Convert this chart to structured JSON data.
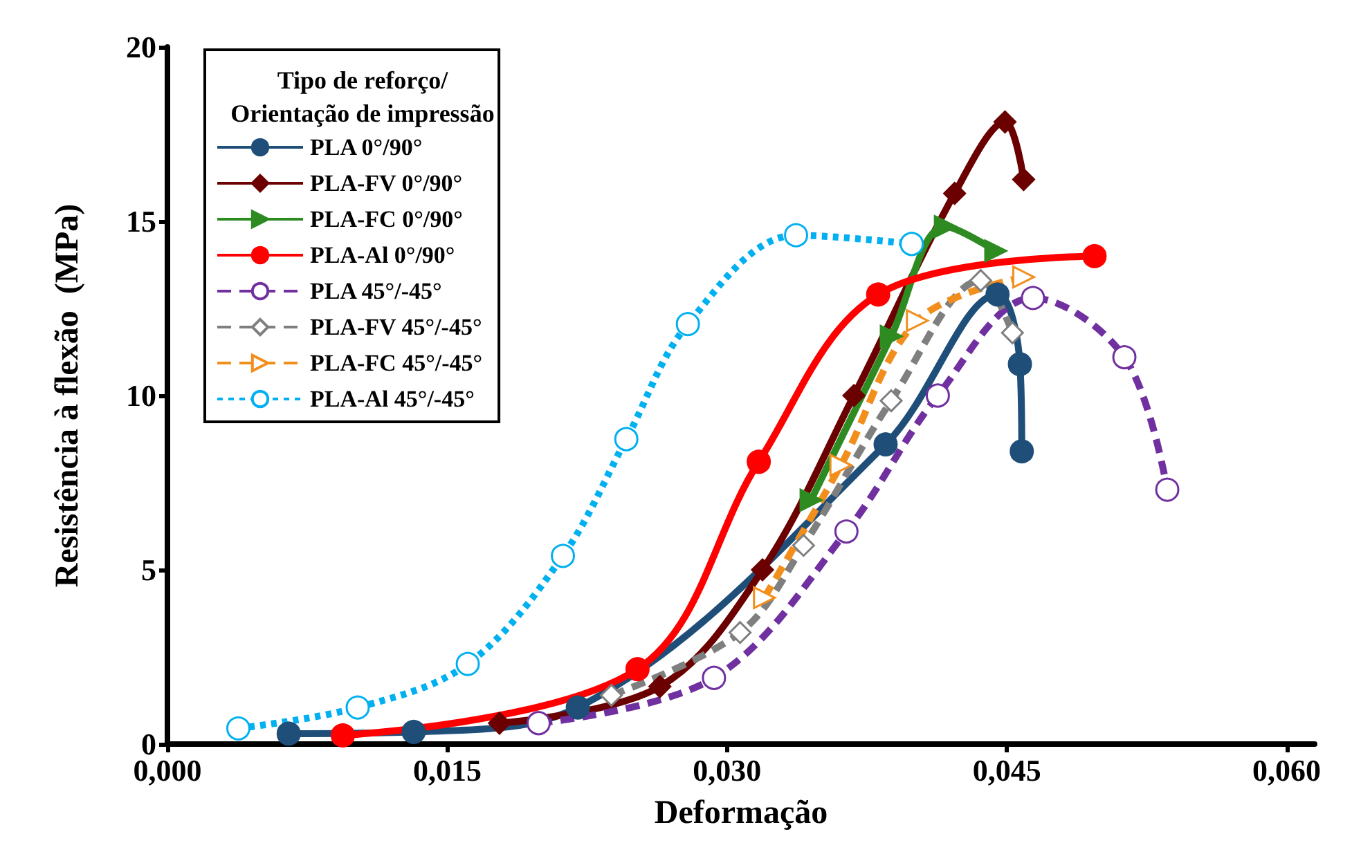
{
  "chart_data": {
    "type": "line",
    "xlabel": "Deformação",
    "ylabel": "Resistência à flexão  (MPa)",
    "legend_title": "Tipo de reforço/\nOrientação de impressão",
    "legend": "top left",
    "grid": false,
    "xlim": [
      0,
      0.0615
    ],
    "xticks": [
      {
        "value": 0,
        "label": "0,000"
      },
      {
        "value": 0.015,
        "label": "0,015"
      },
      {
        "value": 0.03,
        "label": "0,030"
      },
      {
        "value": 0.045,
        "label": "0,045"
      },
      {
        "value": 0.06,
        "label": "0,060"
      }
    ],
    "ylim": [
      0,
      20
    ],
    "yticks": [
      0,
      5,
      10,
      15,
      20
    ],
    "series": [
      {
        "name": "PLA 0°/90°",
        "color": "#1f4e79",
        "line_style": "solid",
        "marker": "circle",
        "x": [
          0.0065,
          0.0132,
          0.022,
          0.0385,
          0.0445,
          0.0457,
          0.0458
        ],
        "values": [
          0.3,
          0.35,
          1.05,
          8.6,
          12.9,
          10.9,
          8.4
        ]
      },
      {
        "name": "PLA-FV 0°/90°",
        "color": "#6b0000",
        "line_style": "solid",
        "marker": "diamond",
        "x": [
          0.0178,
          0.0264,
          0.0319,
          0.0368,
          0.0422,
          0.0449,
          0.0459
        ],
        "values": [
          0.6,
          1.65,
          5.0,
          10.0,
          15.8,
          17.85,
          16.2
        ]
      },
      {
        "name": "PLA-FC 0°/90°",
        "color": "#2e8b22",
        "line_style": "solid",
        "marker": "triangle",
        "x": [
          0.0345,
          0.0388,
          0.0417,
          0.0444
        ],
        "values": [
          7.0,
          11.7,
          14.85,
          14.15
        ]
      },
      {
        "name": "PLA-Al 0°/90°",
        "color": "#ff0000",
        "line_style": "solid",
        "marker": "circle",
        "x": [
          0.0094,
          0.0252,
          0.0317,
          0.0381,
          0.0497
        ],
        "values": [
          0.25,
          2.15,
          8.1,
          12.9,
          14.0
        ]
      },
      {
        "name": "PLA 45°/-45°",
        "color": "#7030a0",
        "line_style": "dashed",
        "marker": "circle",
        "x": [
          0.0199,
          0.0293,
          0.0364,
          0.0413,
          0.0464,
          0.0513,
          0.0536
        ],
        "values": [
          0.6,
          1.9,
          6.1,
          10.0,
          12.8,
          11.1,
          7.3
        ]
      },
      {
        "name": "PLA-FV 45°/-45°",
        "color": "#7f7f7f",
        "line_style": "dashed",
        "marker": "diamond",
        "x": [
          0.0238,
          0.0307,
          0.0341,
          0.0388,
          0.0436,
          0.0453
        ],
        "values": [
          1.4,
          3.2,
          5.7,
          9.85,
          13.3,
          11.8
        ]
      },
      {
        "name": "PLA-FC 45°/-45°",
        "color": "#f28e1c",
        "line_style": "dashed",
        "marker": "triangle",
        "x": [
          0.032,
          0.0361,
          0.0402,
          0.0459
        ],
        "values": [
          4.2,
          8.0,
          12.15,
          13.4
        ]
      },
      {
        "name": "PLA-Al 45°/-45°",
        "color": "#00b0f0",
        "line_style": "dotted",
        "marker": "circle",
        "x": [
          0.0038,
          0.0102,
          0.0161,
          0.0212,
          0.0246,
          0.0279,
          0.0337,
          0.0399
        ],
        "values": [
          0.45,
          1.05,
          2.3,
          5.4,
          8.75,
          12.05,
          14.6,
          14.35
        ]
      }
    ]
  }
}
